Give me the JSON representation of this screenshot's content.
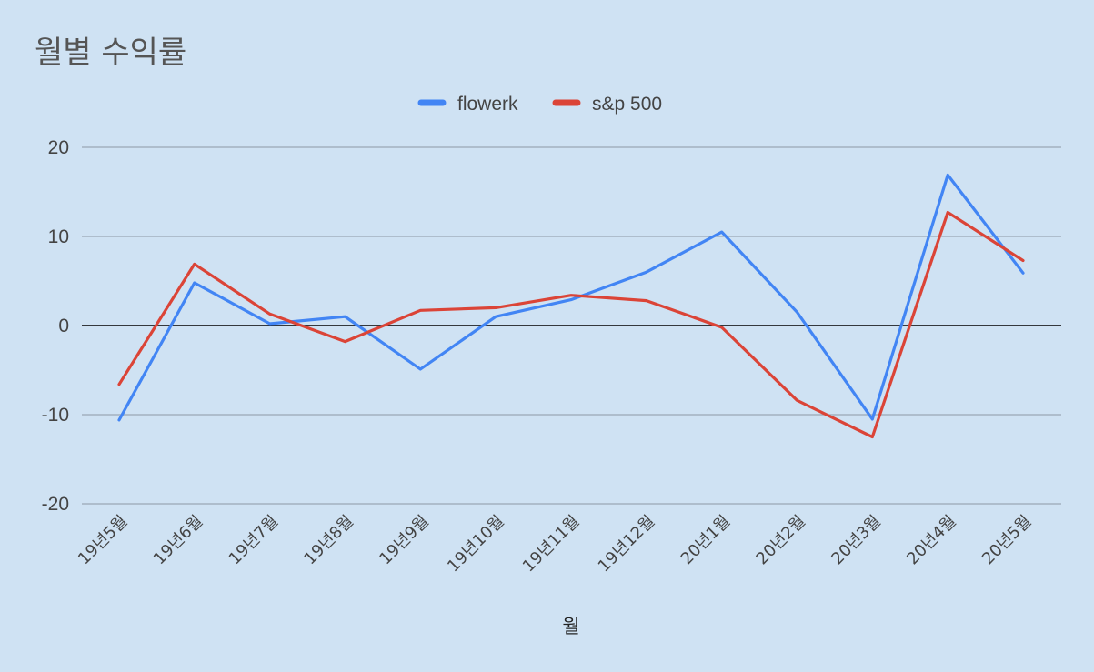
{
  "chart_data": {
    "type": "line",
    "title": "월별 수익률",
    "xlabel": "월",
    "ylabel": "",
    "ylim": [
      -20,
      20
    ],
    "yticks": [
      20,
      10,
      0,
      -10,
      -20
    ],
    "grid": true,
    "legend_position": "top-center",
    "categories": [
      "19년5월",
      "19년6월",
      "19년7월",
      "19년8월",
      "19년9월",
      "19년10월",
      "19년11월",
      "19년12월",
      "20년1월",
      "20년2월",
      "20년3월",
      "20년4월",
      "20년5월"
    ],
    "series": [
      {
        "name": "flowerk",
        "color": "#4285f4",
        "values": [
          -10.6,
          4.8,
          0.2,
          1.0,
          -4.9,
          1.0,
          2.9,
          6.0,
          10.5,
          1.5,
          -10.5,
          16.9,
          5.9
        ]
      },
      {
        "name": "s&p 500",
        "color": "#db4437",
        "values": [
          -6.6,
          6.9,
          1.3,
          -1.8,
          1.7,
          2.0,
          3.4,
          2.8,
          -0.2,
          -8.4,
          -12.5,
          12.7,
          7.3
        ]
      }
    ]
  }
}
